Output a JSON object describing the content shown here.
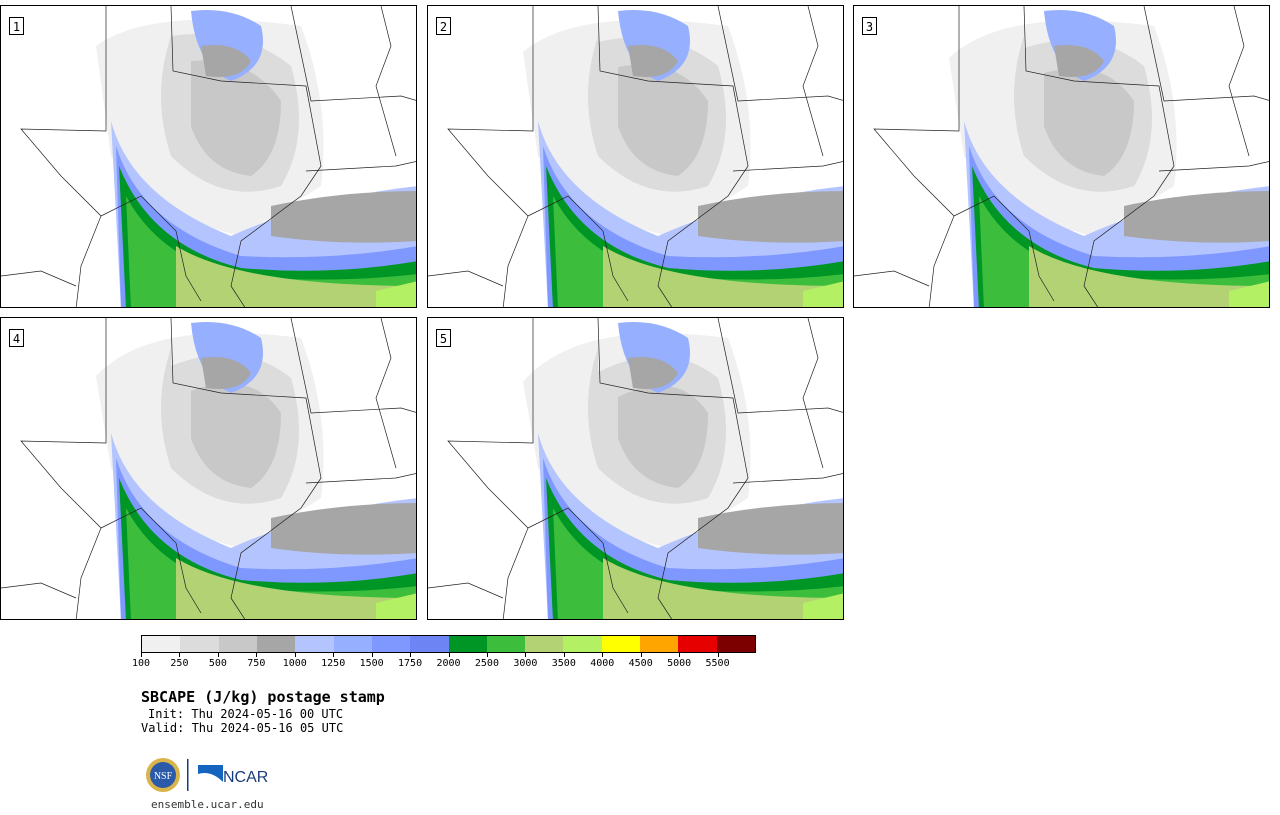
{
  "product": {
    "title": "SBCAPE (J/kg) postage stamp",
    "init": "Init: Thu 2024-05-16 00 UTC",
    "valid": "Valid: Thu 2024-05-16 05 UTC",
    "website": "ensemble.ucar.edu"
  },
  "panels": [
    {
      "label": "1"
    },
    {
      "label": "2"
    },
    {
      "label": "3"
    },
    {
      "label": "4"
    },
    {
      "label": "5"
    }
  ],
  "colorbar": {
    "ticks": [
      "100",
      "250",
      "500",
      "750",
      "1000",
      "1250",
      "1500",
      "1750",
      "2000",
      "2500",
      "3000",
      "3500",
      "4000",
      "4500",
      "5000",
      "5500"
    ],
    "colors": [
      "#f0f0f0",
      "#dcdcdc",
      "#c8c8c8",
      "#a6a6a6",
      "#b4c4ff",
      "#96b0ff",
      "#7f98ff",
      "#6d84f5",
      "#009626",
      "#3cbe3c",
      "#b2d273",
      "#b4f064",
      "#ffff00",
      "#ffa500",
      "#e60000",
      "#7d0000"
    ]
  },
  "logos": {
    "nsf": "NSF",
    "ncar": "NCAR"
  }
}
